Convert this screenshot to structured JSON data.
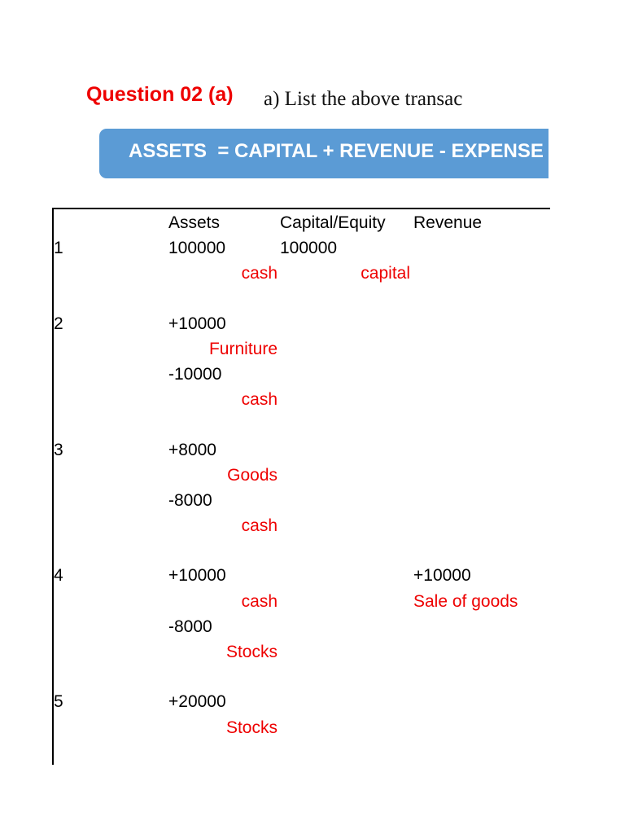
{
  "header": {
    "question_label": "Question 02 (a)",
    "question_text": "a)  List the above transac"
  },
  "banner": {
    "equation": "ASSETS  = CAPITAL + REVENUE - EXPENSE"
  },
  "table": {
    "headers": {
      "assets": "Assets",
      "capital": "Capital/Equity",
      "revenue": "Revenue"
    },
    "transactions": [
      {
        "number": "1",
        "assets_value": "100000",
        "assets_label": "cash",
        "capital_value": "100000",
        "capital_label": "capital"
      },
      {
        "number": "2",
        "lines": [
          {
            "value": "+10000",
            "label": "Furniture"
          },
          {
            "value": "-10000",
            "label": "cash"
          }
        ]
      },
      {
        "number": "3",
        "lines": [
          {
            "value": "+8000",
            "label": "Goods"
          },
          {
            "value": "-8000",
            "label": "cash"
          }
        ]
      },
      {
        "number": "4",
        "lines": [
          {
            "value": "+10000",
            "label": "cash"
          },
          {
            "value": "-8000",
            "label": "Stocks"
          }
        ],
        "revenue_value": "+10000",
        "revenue_label": "Sale of goods"
      },
      {
        "number": "5",
        "lines": [
          {
            "value": "+20000",
            "label": "Stocks"
          }
        ]
      }
    ]
  }
}
